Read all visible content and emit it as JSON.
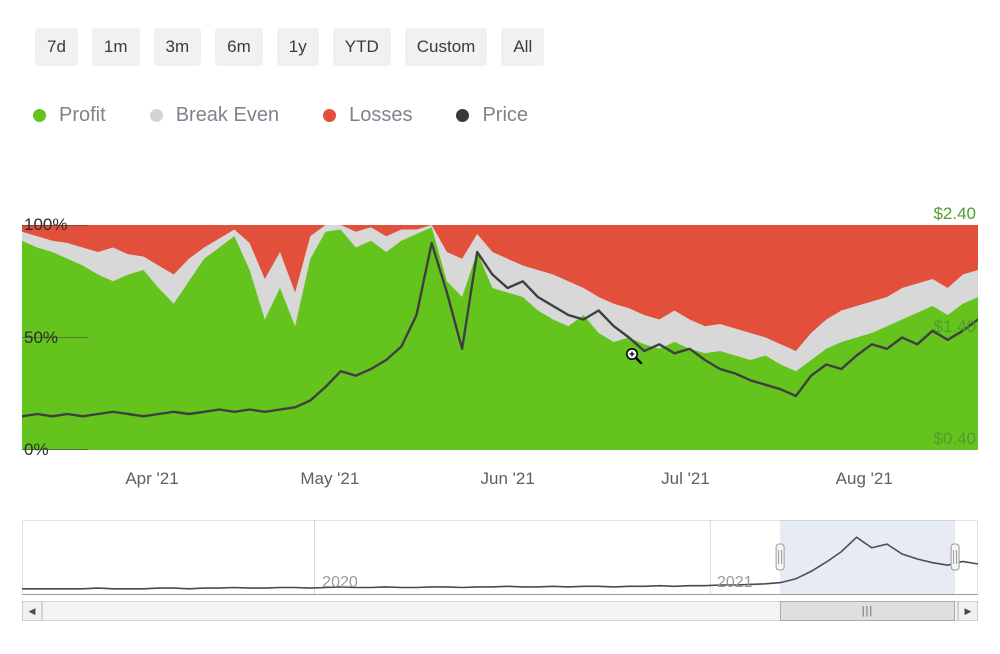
{
  "range_buttons": [
    "7d",
    "1m",
    "3m",
    "6m",
    "1y",
    "YTD",
    "Custom",
    "All"
  ],
  "legend": {
    "items": [
      {
        "label": "Profit",
        "color": "#65c31d"
      },
      {
        "label": "Break Even",
        "color": "#d4d4d4"
      },
      {
        "label": "Losses",
        "color": "#e2503c"
      },
      {
        "label": "Price",
        "color": "#3a3a3a"
      }
    ]
  },
  "chart_data": {
    "type": "area",
    "stacking": "percent",
    "title": "",
    "x_ticks": [
      {
        "label": "Apr '21",
        "t": 0.136
      },
      {
        "label": "May '21",
        "t": 0.322
      },
      {
        "label": "Jun '21",
        "t": 0.508
      },
      {
        "label": "Jul '21",
        "t": 0.694
      },
      {
        "label": "Aug '21",
        "t": 0.881
      }
    ],
    "y_left_ticks": [
      {
        "label": "100%",
        "t": 0
      },
      {
        "label": "50%",
        "t": 0.5
      },
      {
        "label": "0%",
        "t": 1
      }
    ],
    "y_right_ticks": [
      {
        "label": "$2.40",
        "t": 0
      },
      {
        "label": "$1.40",
        "t": 0.5
      },
      {
        "label": "$0.40",
        "t": 1
      }
    ],
    "y_right_range": [
      0.4,
      2.4
    ],
    "series": [
      {
        "name": "Profit",
        "type": "area",
        "color": "#65c31d",
        "values_pct": [
          93,
          90,
          88,
          85,
          82,
          78,
          75,
          78,
          80,
          72,
          65,
          75,
          85,
          90,
          95,
          80,
          58,
          72,
          55,
          85,
          97,
          98,
          90,
          93,
          88,
          93,
          96,
          99,
          75,
          68,
          88,
          72,
          70,
          68,
          62,
          58,
          55,
          60,
          52,
          48,
          50,
          47,
          45,
          48,
          45,
          43,
          44,
          42,
          40,
          42,
          38,
          35,
          40,
          45,
          48,
          50,
          52,
          55,
          58,
          61,
          64,
          60,
          65,
          68
        ]
      },
      {
        "name": "Break Even",
        "type": "area",
        "color": "#d8d8d8",
        "values_pct": [
          4,
          5,
          5,
          7,
          8,
          10,
          15,
          9,
          6,
          10,
          13,
          10,
          5,
          4,
          3,
          12,
          18,
          16,
          15,
          10,
          3,
          2,
          7,
          6,
          7,
          5,
          2,
          1,
          13,
          17,
          8,
          16,
          15,
          14,
          18,
          20,
          20,
          12,
          16,
          17,
          13,
          13,
          13,
          14,
          13,
          12,
          12,
          12,
          12,
          8,
          9,
          9,
          12,
          13,
          14,
          14,
          14,
          13,
          14,
          13,
          12,
          12,
          13,
          12
        ]
      },
      {
        "name": "Losses",
        "type": "area",
        "color": "#e2503c",
        "values_pct": [
          3,
          5,
          7,
          8,
          10,
          12,
          10,
          13,
          14,
          18,
          22,
          15,
          10,
          6,
          2,
          8,
          24,
          12,
          30,
          5,
          0,
          0,
          3,
          1,
          5,
          2,
          2,
          0,
          12,
          15,
          4,
          12,
          15,
          18,
          20,
          22,
          25,
          28,
          32,
          35,
          37,
          40,
          42,
          38,
          42,
          45,
          44,
          46,
          48,
          50,
          53,
          56,
          48,
          42,
          38,
          36,
          34,
          32,
          28,
          26,
          24,
          28,
          22,
          20
        ]
      },
      {
        "name": "Price",
        "type": "line",
        "color": "#3f3f3f",
        "unit": "USD",
        "values": [
          0.7,
          0.72,
          0.7,
          0.72,
          0.7,
          0.72,
          0.74,
          0.72,
          0.7,
          0.72,
          0.74,
          0.72,
          0.74,
          0.76,
          0.74,
          0.76,
          0.74,
          0.76,
          0.78,
          0.84,
          0.96,
          1.1,
          1.06,
          1.12,
          1.2,
          1.32,
          1.6,
          2.24,
          1.8,
          1.3,
          2.16,
          1.96,
          1.84,
          1.9,
          1.76,
          1.68,
          1.6,
          1.56,
          1.64,
          1.5,
          1.4,
          1.28,
          1.34,
          1.26,
          1.3,
          1.2,
          1.12,
          1.08,
          1.02,
          0.98,
          0.94,
          0.88,
          1.06,
          1.16,
          1.12,
          1.24,
          1.34,
          1.3,
          1.4,
          1.34,
          1.46,
          1.38,
          1.46,
          1.56
        ]
      }
    ]
  },
  "navigator": {
    "year_labels": [
      {
        "label": "2020",
        "t": 0.314
      },
      {
        "label": "2021",
        "t": 0.727
      }
    ],
    "gridlines_t": [
      0.306,
      0.72
    ],
    "series": [
      0.02,
      0.02,
      0.02,
      0.02,
      0.02,
      0.03,
      0.02,
      0.02,
      0.02,
      0.03,
      0.03,
      0.02,
      0.03,
      0.03,
      0.04,
      0.03,
      0.03,
      0.04,
      0.04,
      0.03,
      0.04,
      0.05,
      0.04,
      0.04,
      0.05,
      0.04,
      0.04,
      0.05,
      0.05,
      0.04,
      0.05,
      0.05,
      0.06,
      0.05,
      0.05,
      0.06,
      0.05,
      0.06,
      0.06,
      0.05,
      0.06,
      0.06,
      0.07,
      0.06,
      0.07,
      0.07,
      0.08,
      0.08,
      0.09,
      0.1,
      0.12,
      0.18,
      0.3,
      0.45,
      0.62,
      0.85,
      0.68,
      0.74,
      0.58,
      0.5,
      0.44,
      0.4,
      0.46,
      0.42
    ],
    "selection": {
      "start": 0.793,
      "end": 0.976
    }
  },
  "scrollbar": {
    "left_arrow": "◀",
    "right_arrow": "▶",
    "grip": "|||",
    "thumb": {
      "start": 0.793,
      "end": 0.976
    }
  }
}
